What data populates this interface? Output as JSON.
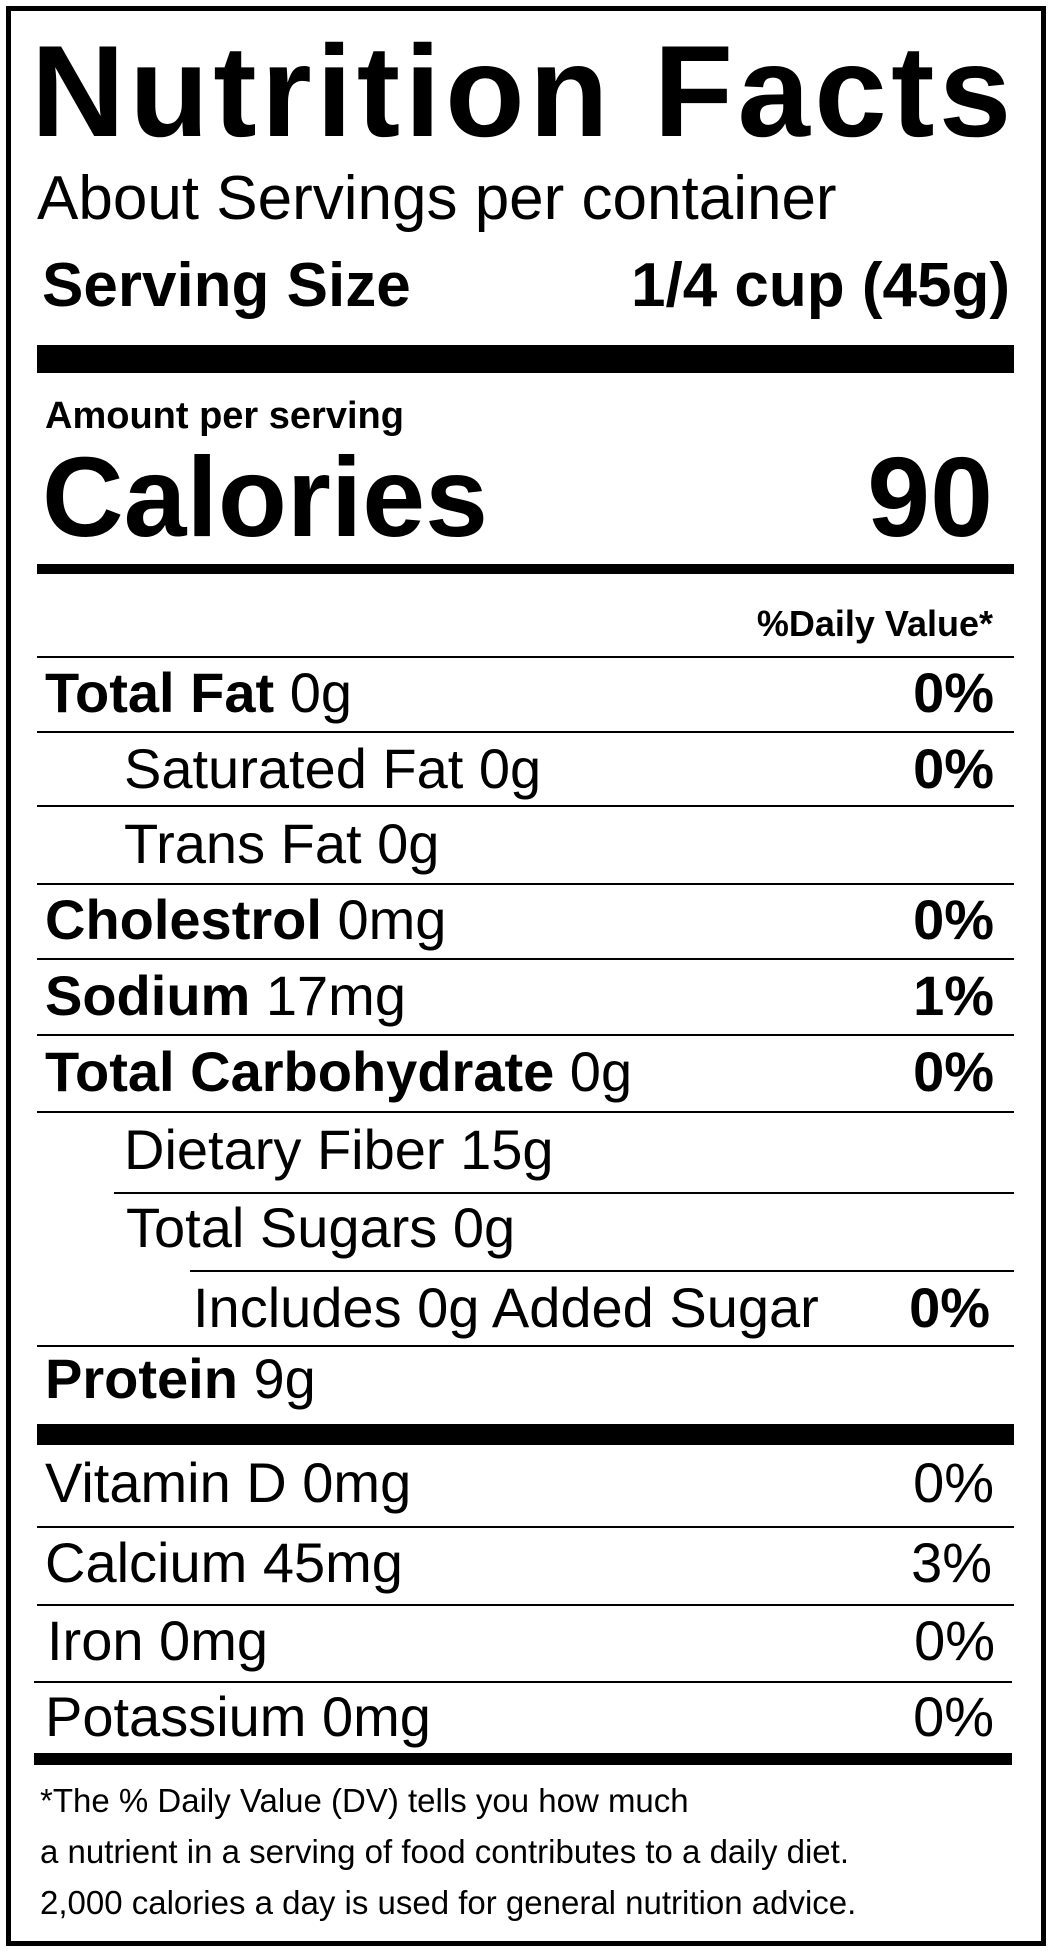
{
  "title": "Nutrition Facts",
  "servings_per_container": "About  Servings per container",
  "serving_size": {
    "label": "Serving Size",
    "value": "1/4 cup (45g)"
  },
  "amount_per_serving": "Amount per serving",
  "calories": {
    "label": "Calories",
    "value": "90"
  },
  "daily_value_header": "%Daily Value*",
  "nutrients": [
    {
      "label": "Total Fat",
      "amount": " 0g",
      "dv": "0%"
    },
    {
      "label": "Saturated Fat 0g",
      "dv": "0%"
    },
    {
      "label": "Trans Fat 0g"
    },
    {
      "label": "Cholestrol",
      "amount": " 0mg",
      "dv": "0%"
    },
    {
      "label": "Sodium",
      "amount": " 17mg",
      "dv": "1%"
    },
    {
      "label": "Total Carbohydrate",
      "amount": " 0g",
      "dv": "0%"
    },
    {
      "label": "Dietary Fiber 15g"
    },
    {
      "label": "Total Sugars 0g"
    },
    {
      "label": "Includes 0g Added Sugar",
      "dv": "0%"
    },
    {
      "label": "Protein",
      "amount": " 9g"
    }
  ],
  "vitamins": [
    {
      "label": "Vitamin D 0mg",
      "dv": "0%"
    },
    {
      "label": "Calcium 45mg",
      "dv": "3%"
    },
    {
      "label": "Iron 0mg",
      "dv": "0%"
    },
    {
      "label": "Potassium 0mg",
      "dv": "0%"
    }
  ],
  "footnote": [
    "*The % Daily Value (DV) tells you how much",
    "a nutrient in a serving of food contributes to a daily diet.",
    "2,000 calories a day is used for general nutrition advice."
  ]
}
